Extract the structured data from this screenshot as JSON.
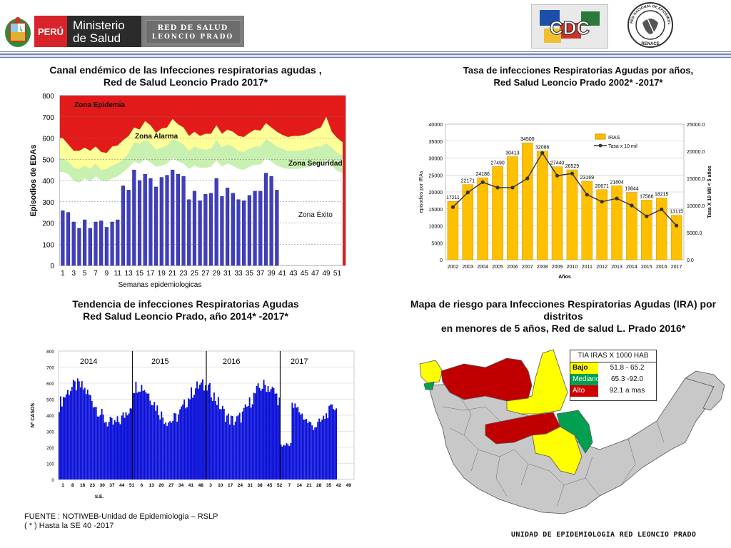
{
  "header": {
    "peru_label": "PERÚ",
    "ministry_line1": "Ministerio",
    "ministry_line2": "de Salud",
    "network_line1": "RED DE SALUD",
    "network_line2": "LEONCIO PRADO",
    "cdc_label": "CDC",
    "seal_top": "RED NACIONAL DE EPIDEMIOLOGÍA",
    "seal_bottom": "RENACE"
  },
  "chart1_title_line1": "Canal endémico de las Infecciones respiratorias agudas ,",
  "chart1_title_line2": "Red de Salud Leoncio  Prado 2017*",
  "chart2_title_line1": "Tasa de infecciones  Respiratorias Agudas por años,",
  "chart2_title_line2": "Red Salud Leoncio Prado  2002* -2017*",
  "chart3_title_line1": "Tendencia de infecciones  Respiratorias Agudas",
  "chart3_title_line2": "Red Salud Leoncio Prado,  año 2014* -2017*",
  "map_title_line1": "Mapa de riesgo para Infecciones Respiratorias Agudas (IRA)  por distritos",
  "map_title_line2": "en menores de 5 años, Red de salud L. Prado 2016*",
  "map": {
    "legend_title": "TIA IRAS X 1000 HAB",
    "rows": [
      {
        "label": "Bajo",
        "range": "51.8 - 65.2",
        "color": "#ffff00"
      },
      {
        "label": "Mediano",
        "range": "65.3 -92.0",
        "color": "#00a050"
      },
      {
        "label": "Alto",
        "range": "92.1 a mas",
        "color": "#d00000"
      }
    ]
  },
  "footer": {
    "source": "FUENTE : NOTIWEB-Unidad de Epidemiologia – RSLP",
    "note": "( * ) Hasta la SE  40 -2017",
    "unit": "UNIDAD  DE EPIDEMIOLOGIA RED LEONCIO PRADO"
  },
  "chart_data": [
    {
      "type": "bar",
      "title": "Canal endémico de las Infecciones respiratorias agudas , Red de Salud Leoncio  Prado 2017*",
      "xlabel": "Semanas epidemiologicas",
      "ylabel": "Episodios de EDAs",
      "ylim": [
        0,
        800
      ],
      "yticks": [
        0,
        100,
        200,
        300,
        400,
        500,
        600,
        700,
        800
      ],
      "xticks": [
        "1",
        "3",
        "5",
        "7",
        "9",
        "11",
        "13",
        "15",
        "17",
        "19",
        "21",
        "23",
        "25",
        "27",
        "29",
        "31",
        "33",
        "35",
        "37",
        "39",
        "41",
        "43",
        "45",
        "47",
        "49",
        "51"
      ],
      "zones": {
        "epidemia": "Zona Epidemia",
        "alarma": "Zona Alarma",
        "seguridad": "Zona Seguridad",
        "exito": "Zona Éxito"
      },
      "weeks": 52,
      "values": [
        258,
        250,
        205,
        175,
        215,
        175,
        205,
        210,
        180,
        205,
        215,
        375,
        355,
        450,
        400,
        430,
        410,
        370,
        415,
        425,
        450,
        430,
        420,
        310,
        350,
        305,
        335,
        340,
        410,
        325,
        365,
        340,
        310,
        305,
        330,
        350,
        350,
        435,
        420,
        355
      ],
      "seguridad_upper": [
        505,
        490,
        460,
        455,
        470,
        455,
        480,
        450,
        455,
        470,
        480,
        500,
        530,
        580,
        575,
        590,
        575,
        545,
        555,
        565,
        595,
        585,
        570,
        540,
        560,
        550,
        545,
        550,
        590,
        555,
        570,
        560,
        540,
        535,
        550,
        560,
        560,
        595,
        580,
        560,
        550,
        540,
        540,
        540,
        545,
        550,
        560,
        560,
        575,
        555,
        530,
        520
      ],
      "alarma_upper": [
        600,
        570,
        540,
        540,
        555,
        540,
        560,
        535,
        530,
        560,
        565,
        590,
        610,
        650,
        640,
        680,
        660,
        625,
        645,
        650,
        690,
        665,
        650,
        610,
        630,
        610,
        620,
        620,
        660,
        620,
        640,
        630,
        610,
        605,
        625,
        640,
        635,
        670,
        650,
        630,
        615,
        605,
        610,
        610,
        615,
        625,
        640,
        650,
        700,
        630,
        600,
        580
      ],
      "exito_upper": [
        440,
        430,
        400,
        390,
        410,
        395,
        420,
        400,
        395,
        410,
        420,
        440,
        460,
        490,
        480,
        500,
        485,
        465,
        470,
        480,
        505,
        490,
        480,
        455,
        470,
        460,
        460,
        465,
        495,
        465,
        480,
        470,
        455,
        450,
        465,
        475,
        475,
        505,
        490,
        470,
        460,
        455,
        455,
        455,
        460,
        465,
        475,
        480,
        495,
        470,
        445,
        435
      ]
    },
    {
      "type": "bar",
      "title": "Tasa de infecciones  Respiratorias Agudas por años, Red Salud Leoncio Prado  2002* -2017*",
      "xlabel": "Años",
      "ylabel": "episodios por IRAs",
      "y2label": "Tasa X 10 Mil < 5 años",
      "ylim": [
        0,
        40000
      ],
      "y2lim": [
        0.0,
        25000.0
      ],
      "categories": [
        "2002",
        "2003",
        "2004",
        "2005",
        "2006",
        "2007",
        "2008",
        "2009",
        "2010",
        "2011",
        "2012",
        "2013",
        "2014",
        "2015",
        "2016",
        "2017"
      ],
      "series": [
        {
          "name": "IRAS",
          "values": [
            17211,
            22171,
            24186,
            27490,
            30413,
            34500,
            32086,
            27440,
            26529,
            23169,
            20671,
            21804,
            19844,
            17586,
            18215,
            13115
          ]
        },
        {
          "name": "Tasa x 10 mil",
          "values": [
            9700,
            12400,
            14300,
            13300,
            13300,
            15000,
            19700,
            15500,
            15900,
            12000,
            10700,
            11300,
            10000,
            8000,
            9300,
            6300
          ]
        }
      ]
    },
    {
      "type": "bar",
      "title": "Tendencia de infecciones  Respiratorias Agudas Red Salud Leoncio Prado,  año 2014* -2017*",
      "xlabel": "S.E.",
      "ylabel": "Nº CASOS",
      "ylim": [
        0,
        800
      ],
      "yticks": [
        0,
        100,
        200,
        300,
        400,
        500,
        600,
        700,
        800
      ],
      "year_labels": [
        "2014",
        "2015",
        "2016",
        "2017"
      ],
      "xticks": [
        "1",
        "8",
        "16",
        "23",
        "30",
        "37",
        "44",
        "51",
        "6",
        "13",
        "20",
        "27",
        "34",
        "41",
        "48",
        "3",
        "10",
        "17",
        "24",
        "31",
        "38",
        "45",
        "52",
        "7",
        "14",
        "21",
        "28",
        "35",
        "42",
        "49"
      ]
    }
  ]
}
